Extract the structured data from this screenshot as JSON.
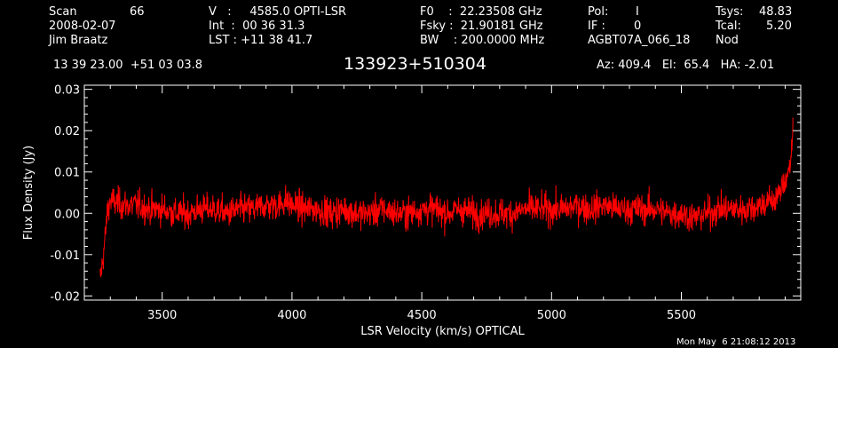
{
  "header": {
    "scan_label": "Scan",
    "scan_value": "66",
    "date": "2008-02-07",
    "observer": "Jim Braatz",
    "velocity": "V   :     4585.0 OPTI-LSR",
    "int_time": "Int  :  00 36 31.3",
    "lst": "LST : +11 38 41.7",
    "f0": "F0    :  22.23508 GHz",
    "fsky": "Fsky :  21.90181 GHz",
    "bw": "BW    : 200.0000 MHz",
    "pol_label": "Pol:",
    "pol_value": "I",
    "if_label": "IF :",
    "if_value": "0",
    "project": "AGBT07A_066_18",
    "tsys_label": "Tsys:",
    "tsys_value": "48.83",
    "tcal_label": "Tcal:",
    "tcal_value": "5.20",
    "mode": "Nod",
    "coords": "13 39 23.00  +51 03 03.8",
    "source": "133923+510304",
    "az_el_ha": "Az: 409.4   El:  65.4   HA: -2.01",
    "timestamp": "Mon May  6 21:08:12 2013"
  },
  "colors": {
    "background": "#000000",
    "axes": "#ffffff",
    "series": "#ff0000"
  },
  "chart_data": {
    "type": "line",
    "xlabel": "LSR Velocity (km/s) OPTICAL",
    "ylabel": "Flux Density (Jy)",
    "xlim": [
      3200,
      5960
    ],
    "ylim": [
      -0.021,
      0.031
    ],
    "xticks": [
      3500,
      4000,
      4500,
      5000,
      5500
    ],
    "xtick_labels": [
      "3500",
      "4000",
      "4500",
      "5000",
      "5500"
    ],
    "yticks": [
      -0.02,
      -0.01,
      0.0,
      0.01,
      0.02,
      0.03
    ],
    "ytick_labels": [
      "-0.02",
      "-0.01",
      "0.00",
      "0.01",
      "0.02",
      "0.03"
    ],
    "grid": false,
    "series": [
      {
        "color": "#ff0000",
        "x": [
          3260,
          3270,
          3280,
          3290,
          3300,
          3350,
          3400,
          3450,
          3500,
          3550,
          3600,
          3650,
          3700,
          3750,
          3800,
          3850,
          3900,
          3950,
          3975,
          4000,
          4050,
          4100,
          4150,
          4200,
          4250,
          4300,
          4350,
          4400,
          4450,
          4500,
          4550,
          4600,
          4650,
          4700,
          4750,
          4800,
          4850,
          4900,
          4950,
          5000,
          5050,
          5100,
          5150,
          5200,
          5250,
          5300,
          5350,
          5400,
          5450,
          5500,
          5550,
          5600,
          5650,
          5700,
          5750,
          5800,
          5850,
          5880,
          5900,
          5920,
          5930
        ],
        "y": [
          -0.016,
          -0.012,
          -0.006,
          0.001,
          0.003,
          0.002,
          0.002,
          0.001,
          0.001,
          0.0,
          0.0,
          0.001,
          0.001,
          0.0,
          0.001,
          0.001,
          0.002,
          0.002,
          0.003,
          0.002,
          0.001,
          0.001,
          0.0,
          0.001,
          0.0,
          0.0,
          0.001,
          0.0,
          0.0,
          0.001,
          0.001,
          0.0,
          0.001,
          0.0,
          0.0,
          0.0,
          0.0,
          0.001,
          0.001,
          0.001,
          0.001,
          0.002,
          0.001,
          0.002,
          0.001,
          0.001,
          0.001,
          0.001,
          0.0,
          0.0,
          -0.001,
          0.0,
          0.001,
          0.001,
          0.001,
          0.002,
          0.003,
          0.005,
          0.008,
          0.012,
          0.019
        ]
      }
    ]
  }
}
